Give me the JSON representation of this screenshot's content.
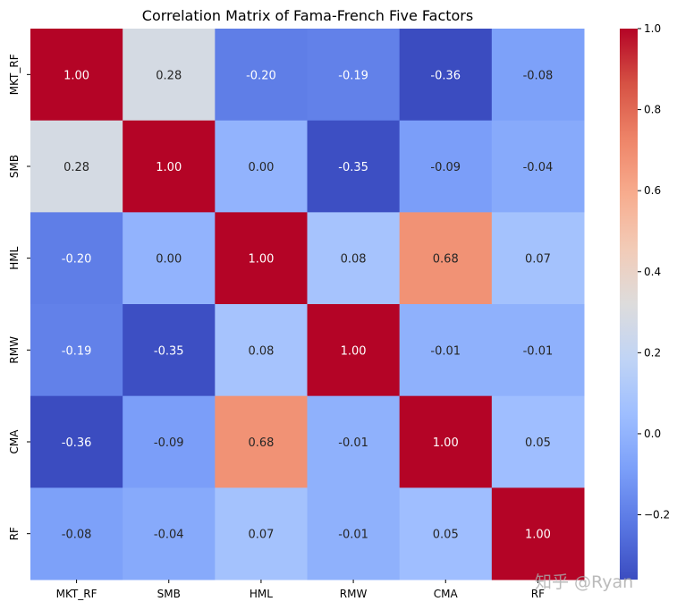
{
  "chart_data": {
    "type": "heatmap",
    "title": "Correlation Matrix of Fama-French Five Factors",
    "row_labels": [
      "MKT_RF",
      "SMB",
      "HML",
      "RMW",
      "CMA",
      "RF"
    ],
    "col_labels": [
      "MKT_RF",
      "SMB",
      "HML",
      "RMW",
      "CMA",
      "RF"
    ],
    "values": [
      [
        1.0,
        0.28,
        -0.2,
        -0.19,
        -0.36,
        -0.08
      ],
      [
        0.28,
        1.0,
        0.0,
        -0.35,
        -0.09,
        -0.04
      ],
      [
        -0.2,
        0.0,
        1.0,
        0.08,
        0.68,
        0.07
      ],
      [
        -0.19,
        -0.35,
        0.08,
        1.0,
        -0.01,
        -0.01
      ],
      [
        -0.36,
        -0.09,
        0.68,
        -0.01,
        1.0,
        0.05
      ],
      [
        -0.08,
        -0.04,
        0.07,
        -0.01,
        0.05,
        1.0
      ]
    ],
    "colormap": "coolwarm",
    "vmin": -0.36,
    "vmax": 1.0,
    "colorbar_ticks": [
      "1.0",
      "0.8",
      "0.6",
      "0.4",
      "0.2",
      "0.0",
      "−0.2"
    ],
    "colorbar_tick_values": [
      1.0,
      0.8,
      0.6,
      0.4,
      0.2,
      0.0,
      -0.2
    ],
    "annotation_format": "0.00"
  },
  "watermark": "知乎 @Ryan"
}
